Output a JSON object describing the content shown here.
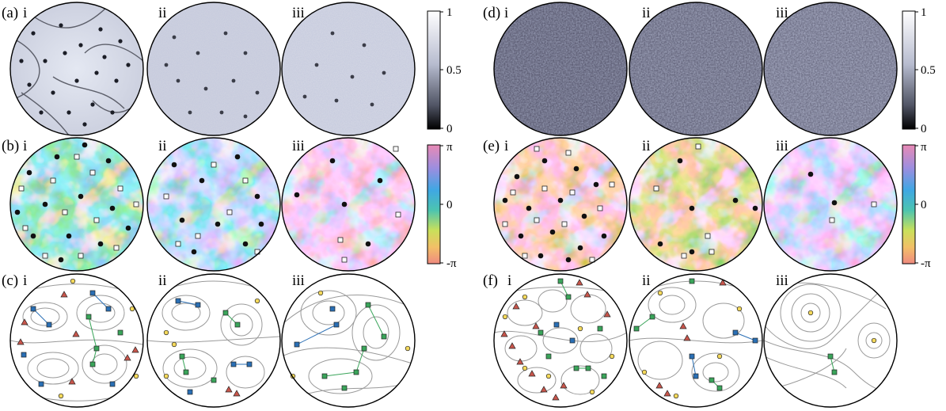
{
  "figure": {
    "rows": [
      {
        "panel_left": "(a)",
        "panel_right": "(d)",
        "kind": "amplitude"
      },
      {
        "panel_left": "(b)",
        "panel_right": "(e)",
        "kind": "phase"
      },
      {
        "panel_left": "(c)",
        "panel_right": "(f)",
        "kind": "streamlines"
      }
    ],
    "subpanel_labels": [
      "i",
      "ii",
      "iii"
    ],
    "colorbar_amplitude": {
      "ticks": [
        "1",
        "0.5",
        "0"
      ]
    },
    "colorbar_phase": {
      "ticks": [
        "π",
        "0",
        "-π"
      ]
    },
    "colors": {
      "vortex_positive": "#111111",
      "vortex_negative": "#ffffff",
      "triangle": "#c8554b",
      "square_blue": "#2a6fb5",
      "square_green": "#3aa55a",
      "circle_yellow": "#f4d95c",
      "streamline": "#9a9a9a"
    }
  }
}
